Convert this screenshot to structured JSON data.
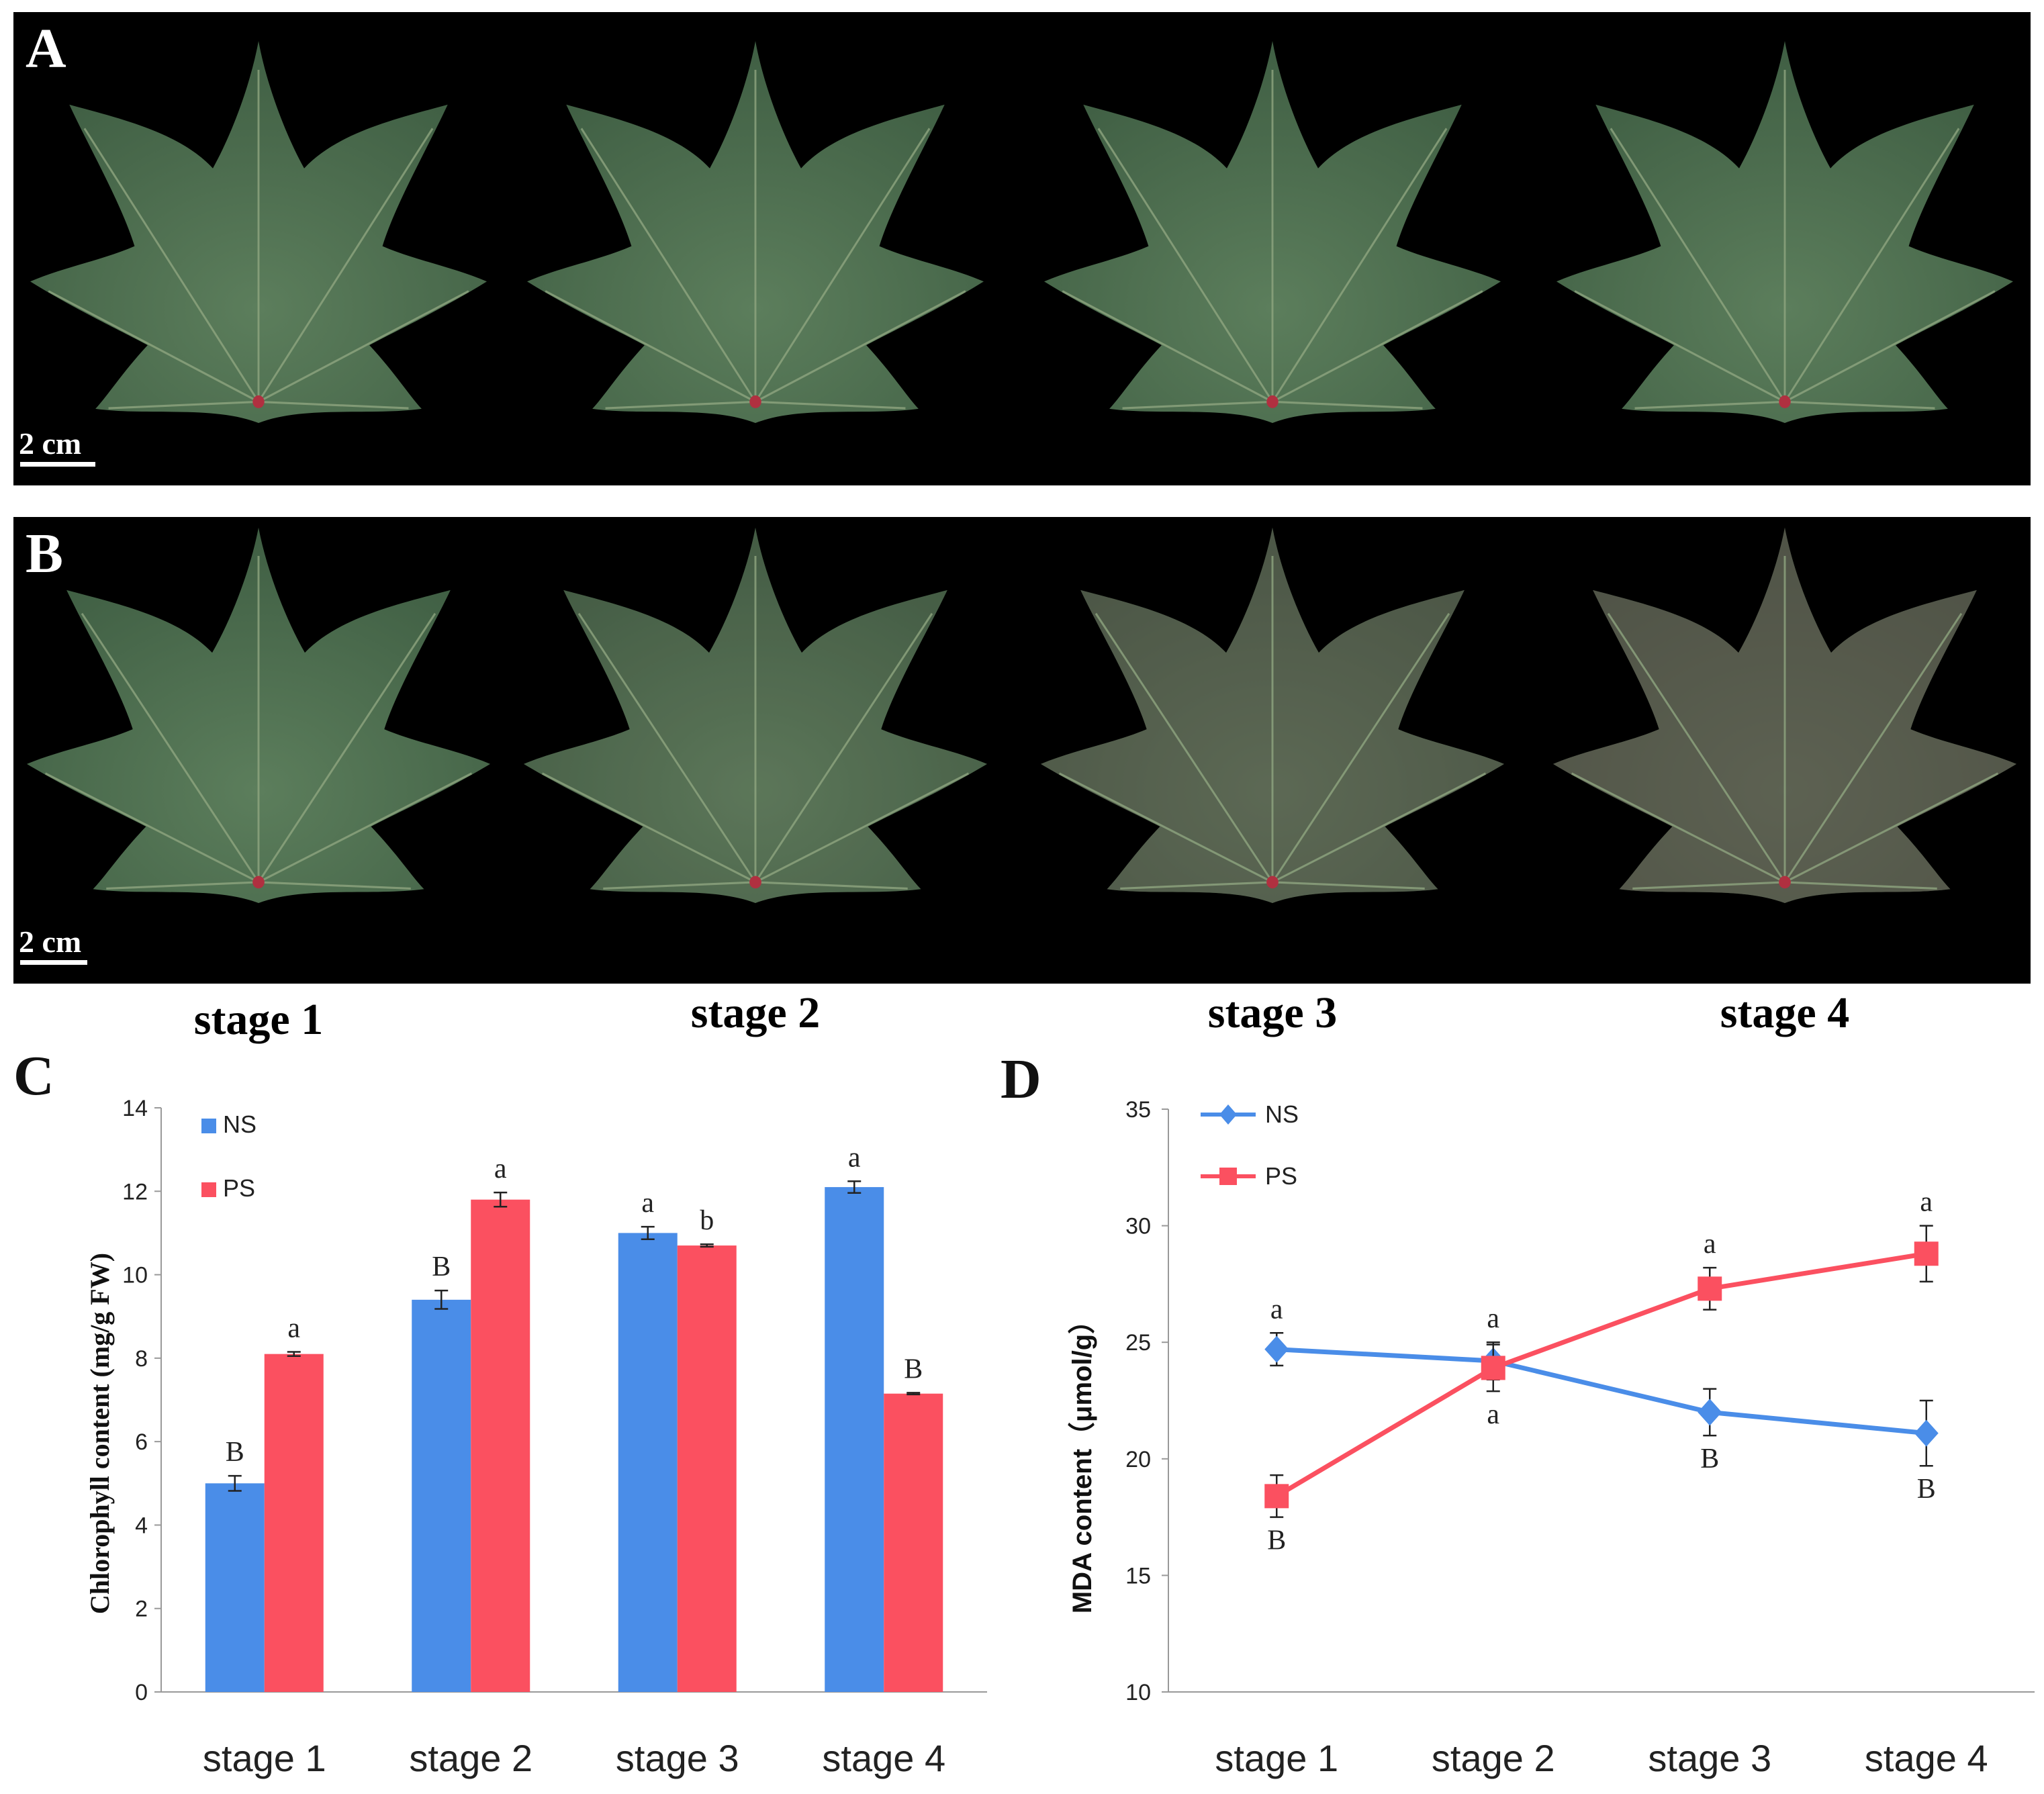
{
  "panels": {
    "A": "A",
    "B": "B",
    "C": "C",
    "D": "D"
  },
  "photo_scale_bar": "2 cm",
  "stage_labels": [
    "stage 1",
    "stage 2",
    "stage 3",
    "stage 4"
  ],
  "colors": {
    "NS": "#4a8de8",
    "PS": "#fb5060",
    "leaf_green": "#4d6e4f",
    "leaf_purple_tint": "#5e4a4a",
    "photo_bg": "#000000"
  },
  "leaf_tints_row_B": [
    0.0,
    0.15,
    0.45,
    0.6
  ],
  "chart_data": [
    {
      "type": "bar",
      "panel": "C",
      "ylabel": "Chlorophyll content (mg/g FW)",
      "xlabel": "",
      "categories": [
        "stage 1",
        "stage 2",
        "stage 3",
        "stage 4"
      ],
      "ylim": [
        0,
        14
      ],
      "yticks": [
        0,
        2,
        4,
        6,
        8,
        10,
        12,
        14
      ],
      "legend_position": "top-left",
      "series": [
        {
          "name": "NS",
          "values": [
            5.0,
            9.4,
            11.0,
            12.1
          ],
          "errors": [
            0.18,
            0.22,
            0.15,
            0.14
          ],
          "letters": [
            "B",
            "B",
            "a",
            "a"
          ]
        },
        {
          "name": "PS",
          "values": [
            8.1,
            11.8,
            10.7,
            7.15
          ],
          "errors": [
            0.05,
            0.17,
            0.03,
            0.02
          ],
          "letters": [
            "a",
            "a",
            "b",
            "B"
          ]
        }
      ]
    },
    {
      "type": "line",
      "panel": "D",
      "ylabel": "MDA content（μmol/g）",
      "xlabel": "",
      "categories": [
        "stage 1",
        "stage 2",
        "stage 3",
        "stage 4"
      ],
      "ylim": [
        10,
        35
      ],
      "yticks": [
        10,
        15,
        20,
        25,
        30,
        35
      ],
      "legend_position": "top-left",
      "series": [
        {
          "name": "NS",
          "values": [
            24.7,
            24.2,
            22.0,
            21.1
          ],
          "errors": [
            0.7,
            0.8,
            1.0,
            1.4
          ],
          "letters": [
            "a",
            "a",
            "B",
            "B"
          ],
          "marker": "diamond"
        },
        {
          "name": "PS",
          "values": [
            18.4,
            23.9,
            27.3,
            28.8
          ],
          "errors": [
            0.9,
            1.0,
            0.9,
            1.2
          ],
          "letters": [
            "B",
            "a",
            "a",
            "a"
          ],
          "marker": "square"
        }
      ]
    }
  ]
}
